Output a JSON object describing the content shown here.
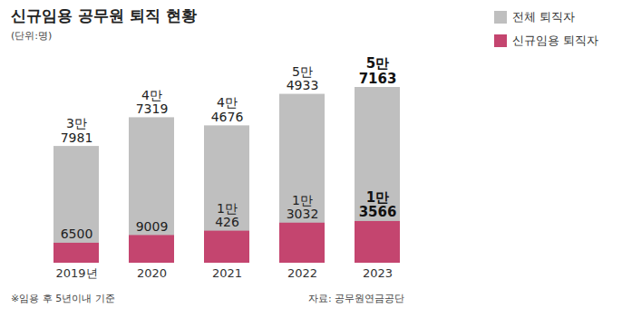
{
  "chart_data": {
    "type": "bar",
    "title": "신규임용 공무원 퇴직 현황",
    "subtitle": "(단위:명)",
    "categories": [
      "2019년",
      "2020",
      "2021",
      "2022",
      "2023"
    ],
    "series": [
      {
        "name": "전체 퇴직자",
        "color": "#bfbfbf",
        "values": [
          37981,
          47319,
          44676,
          54933,
          57163
        ],
        "value_labels": [
          "3만\n7981",
          "4만\n7319",
          "4만\n4676",
          "5만\n4933",
          "5만\n7163"
        ]
      },
      {
        "name": "신규임용 퇴직자",
        "color": "#c4456f",
        "values": [
          6500,
          9009,
          10426,
          13032,
          13566
        ],
        "value_labels": [
          "6500",
          "9009",
          "1만\n426",
          "1만\n3032",
          "1만\n3566"
        ]
      }
    ],
    "stacked": false,
    "data_labels": true,
    "tick_labels": "x",
    "legend": "right",
    "footnote": "※임용 후 5년이내 기준",
    "source": "자료: 공무원연금공단"
  }
}
